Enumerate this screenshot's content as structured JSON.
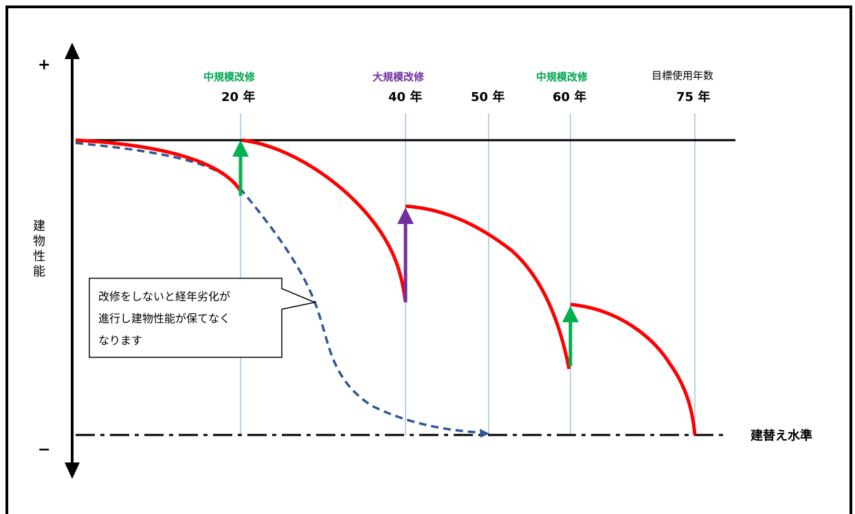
{
  "axis": {
    "y_label": "建物性能",
    "plus": "+",
    "minus": "−"
  },
  "baseline_label": "建替え水準",
  "milestones": [
    {
      "key": "m20",
      "type_label": "中規模改修",
      "year_label": "20 年",
      "color": "#00a650"
    },
    {
      "key": "m40",
      "type_label": "大規模改修",
      "year_label": "40 年",
      "color": "#7030a0"
    },
    {
      "key": "m50",
      "type_label": "",
      "year_label": "50 年",
      "color": "#000000"
    },
    {
      "key": "m60",
      "type_label": "中規模改修",
      "year_label": "60 年",
      "color": "#00a650"
    },
    {
      "key": "m75",
      "type_label": "目標使用年数",
      "year_label": "75 年",
      "color": "#000000"
    }
  ],
  "callout": {
    "text": "改修をしないと経年劣化が進行し建物性能が保てなくなります"
  },
  "colors": {
    "maintained_curve": "#ff0000",
    "unmaintained_curve": "#2f5597",
    "year_gridline": "#9dc3e6",
    "mid_renovation_arrow": "#00b050",
    "large_renovation_arrow": "#7030a0"
  }
}
